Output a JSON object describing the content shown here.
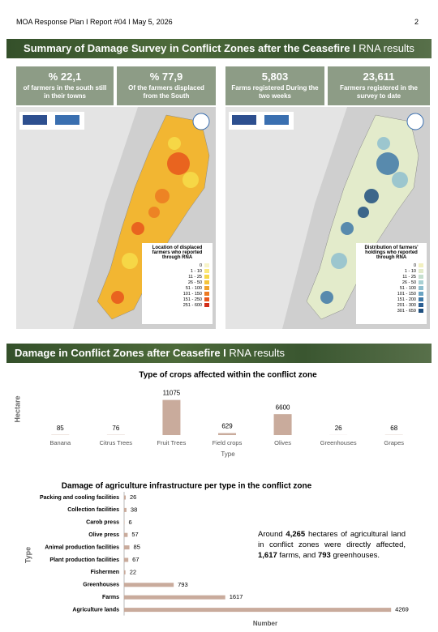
{
  "header": {
    "report": "MOA Response Plan I Report #04 I May 5, 2026",
    "page": "2"
  },
  "banner1": {
    "title": "Summary of Damage Survey in Conflict Zones after the Ceasefire I",
    "suffix": "RNA results"
  },
  "stats": [
    {
      "value": "% 22,1",
      "label": "of farmers in the south still in their towns"
    },
    {
      "value": "% 77,9",
      "label": "Of the farmers displaced from the South"
    },
    {
      "value": "5,803",
      "label": "Farms registered During the two weeks"
    },
    {
      "value": "23,611",
      "label": "Farmers registered in the survey to date"
    }
  ],
  "maps": [
    {
      "legend_title": "Location of displaced farmers who reported through RNA",
      "legend": [
        "0",
        "1 - 10",
        "11 - 25",
        "26 - 50",
        "51 - 100",
        "101 - 150",
        "151 - 250",
        "251 - 600"
      ]
    },
    {
      "legend_title": "Distribution of farmers' holdings who reported through RNA",
      "legend": [
        "0",
        "1 - 10",
        "11 - 25",
        "26 - 50",
        "51 - 100",
        "101 - 150",
        "151 - 200",
        "201 - 300",
        "301 - 659"
      ]
    }
  ],
  "banner2": {
    "title": "Damage in Conflict Zones after Ceasefire I",
    "suffix": "RNA results"
  },
  "chart_data": [
    {
      "type": "bar",
      "title": "Type of crops affected within the conflict zone",
      "x_label": "Type",
      "y_label": "Hectare",
      "categories": [
        "Banana",
        "Citrus Trees",
        "Fruit Trees",
        "Field crops",
        "Olives",
        "Greenhouses",
        "Grapes"
      ],
      "values": [
        85,
        76,
        11075,
        629,
        6600,
        26,
        68
      ],
      "color": "#c9ab9c",
      "ylim": [
        0,
        12000
      ]
    },
    {
      "type": "barh",
      "title": "Damage of agriculture infrastructure per type in the conflict zone",
      "x_label": "Number",
      "y_label": "Type",
      "categories": [
        "Packing and cooling facilities",
        "Collection facilities",
        "Carob press",
        "Olive press",
        "Animal production facilities",
        "Plant production facilities",
        "Fishermen",
        "Greenhouses",
        "Farms",
        "Agriculture lands"
      ],
      "values": [
        26,
        38,
        6,
        57,
        85,
        67,
        22,
        793,
        1617,
        4269
      ],
      "color": "#c9ab9c",
      "xlim": [
        0,
        4500
      ]
    }
  ],
  "summary": [
    "Around ",
    "4,265",
    " hectares of agricultural land in conflict zones were directly affected, ",
    "1,617",
    " farms, and ",
    "793",
    " greenhouses."
  ]
}
